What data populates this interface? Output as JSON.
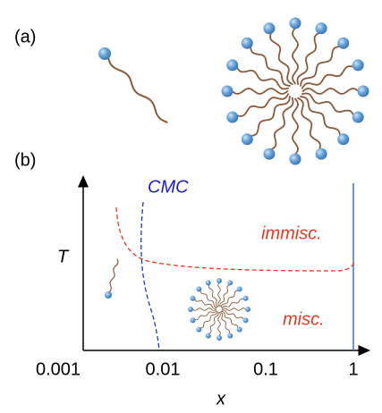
{
  "panel_a": {
    "label": "(a)"
  },
  "panel_b": {
    "label": "(b)",
    "y_axis_label": "T",
    "x_axis_label": "x",
    "x_tick_labels": [
      "0.001",
      "0.01",
      "0.1",
      "1"
    ],
    "cmc_label": "CMC",
    "upper_region_label": "immisc.",
    "lower_region_label": "misc."
  }
}
